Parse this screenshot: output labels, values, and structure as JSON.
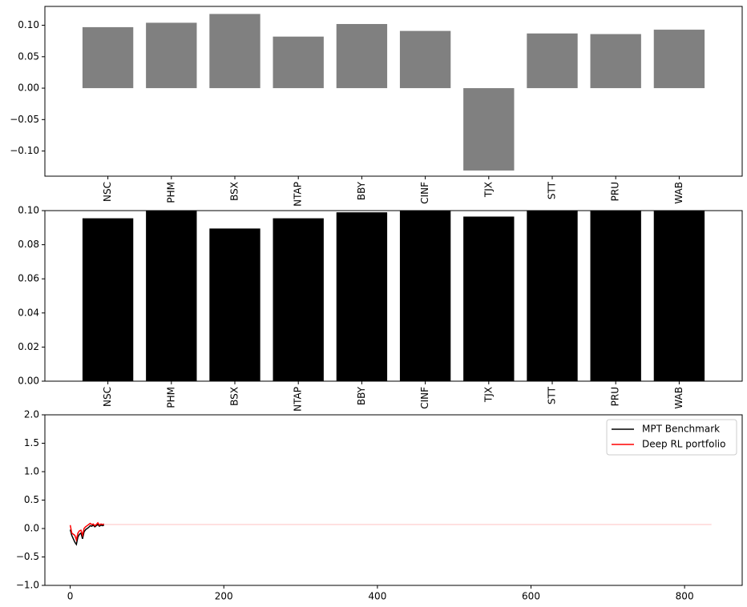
{
  "chart_data": [
    {
      "type": "bar",
      "categories": [
        "NSC",
        "PHM",
        "BSX",
        "NTAP",
        "BBY",
        "CINF",
        "TJX",
        "STT",
        "PRU",
        "WAB"
      ],
      "values": [
        0.097,
        0.104,
        0.118,
        0.082,
        0.102,
        0.091,
        -0.131,
        0.087,
        0.086,
        0.093
      ],
      "ylim": [
        -0.14,
        0.13
      ],
      "yticks": [
        "0.10",
        "0.05",
        "0.00",
        "−0.05",
        "−0.10"
      ],
      "bar_color": "#808080"
    },
    {
      "type": "bar",
      "categories": [
        "NSC",
        "PHM",
        "BSX",
        "NTAP",
        "BBY",
        "CINF",
        "TJX",
        "STT",
        "PRU",
        "WAB"
      ],
      "values": [
        0.0955,
        0.1,
        0.0895,
        0.0955,
        0.099,
        0.1,
        0.0965,
        0.1,
        0.1,
        0.1
      ],
      "ylim": [
        0.0,
        0.1
      ],
      "yticks": [
        "0.10",
        "0.08",
        "0.06",
        "0.04",
        "0.02",
        "0.00"
      ],
      "bar_color": "#000000"
    },
    {
      "type": "line",
      "xlim": [
        -33,
        875
      ],
      "ylim": [
        -1.0,
        2.0
      ],
      "xticks": [
        "0",
        "200",
        "400",
        "600",
        "800"
      ],
      "yticks": [
        "2.0",
        "1.5",
        "1.0",
        "0.5",
        "0.0",
        "−0.5",
        "−1.0"
      ],
      "legend_position": "upper-right",
      "series": [
        {
          "name": "MPT Benchmark",
          "color": "#000000",
          "x": [
            0,
            2,
            4,
            6,
            8,
            10,
            12,
            14,
            16,
            18,
            20,
            22,
            24,
            26,
            28,
            30,
            32,
            34,
            36,
            38,
            40,
            42,
            44
          ],
          "y": [
            -0.02,
            -0.12,
            -0.18,
            -0.24,
            -0.28,
            -0.15,
            -0.1,
            -0.08,
            -0.18,
            -0.06,
            -0.02,
            0.0,
            0.02,
            0.05,
            0.04,
            0.06,
            0.03,
            0.05,
            0.07,
            0.04,
            0.06,
            0.05,
            0.06
          ]
        },
        {
          "name": "Deep RL portfolio",
          "color": "#ff0000",
          "x": [
            0,
            2,
            4,
            6,
            8,
            10,
            12,
            14,
            16,
            18,
            20,
            22,
            24,
            26,
            28,
            30,
            32,
            34,
            36,
            38,
            40,
            42,
            44,
            100,
            300,
            500,
            700,
            835
          ],
          "y": [
            0.06,
            -0.08,
            -0.1,
            -0.12,
            -0.2,
            -0.08,
            -0.04,
            -0.03,
            -0.12,
            0.0,
            0.03,
            0.05,
            0.07,
            0.09,
            0.07,
            0.08,
            0.05,
            0.07,
            0.1,
            0.06,
            0.08,
            0.07,
            0.08,
            0.07,
            0.07,
            0.07,
            0.07,
            0.07
          ]
        }
      ]
    }
  ]
}
